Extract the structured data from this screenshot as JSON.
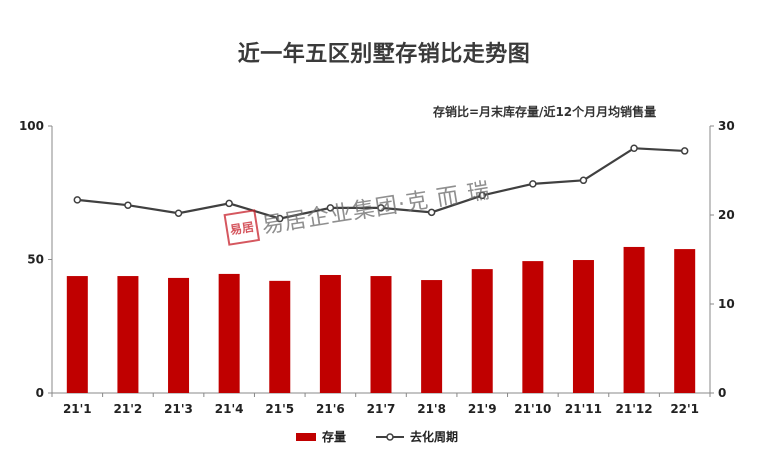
{
  "title": "近一年五区别墅存销比走势图",
  "note": "存销比=月末库存量/近12个月月均销售量",
  "watermark": {
    "seal": "易居",
    "text": "易居企业集团·克 而 瑞"
  },
  "legend": {
    "bar_label": "存量",
    "line_label": "去化周期"
  },
  "colors": {
    "bar": "#c00000",
    "line": "#404040",
    "axis": "#888888"
  },
  "chart_data": {
    "type": "bar+line",
    "title": "近一年五区别墅存销比走势图",
    "annotation": "存销比=月末库存量/近12个月月均销售量",
    "categories": [
      "21'1",
      "21'2",
      "21'3",
      "21'4",
      "21'5",
      "21'6",
      "21'7",
      "21'8",
      "21'9",
      "21'10",
      "21'11",
      "21'12",
      "22'1"
    ],
    "series": [
      {
        "name": "存量",
        "type": "bar",
        "axis": "left",
        "values": [
          43.8,
          43.8,
          43.1,
          44.6,
          42.0,
          44.2,
          43.8,
          42.3,
          46.4,
          49.4,
          49.8,
          54.7,
          53.9
        ]
      },
      {
        "name": "去化周期",
        "type": "line",
        "axis": "right",
        "values": [
          21.7,
          21.1,
          20.2,
          21.3,
          19.6,
          20.8,
          20.8,
          20.3,
          22.2,
          23.5,
          23.9,
          27.5,
          27.2
        ]
      }
    ],
    "left_axis": {
      "ylim": [
        0,
        100
      ],
      "ticks": [
        0,
        50,
        100
      ]
    },
    "right_axis": {
      "ylim": [
        0,
        30
      ],
      "ticks": [
        0,
        10,
        20,
        30
      ]
    },
    "grid": false,
    "legend_position": "bottom"
  }
}
